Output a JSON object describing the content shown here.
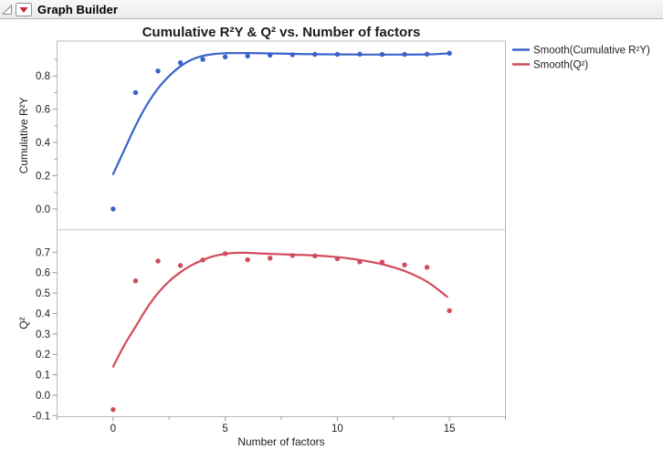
{
  "window": {
    "outline_title": "Graph Builder"
  },
  "chart_data": {
    "type": "scatter",
    "title": "Cumulative R²Y & Q² vs. Number of factors",
    "xlabel": "Number of factors",
    "xlim": [
      -2.5,
      17.5
    ],
    "xticks": [
      [
        0,
        "0"
      ],
      [
        5,
        "5"
      ],
      [
        10,
        "10"
      ],
      [
        15,
        "15"
      ]
    ],
    "xminorticks": [
      -2.5,
      2.5,
      7.5,
      12.5,
      17.5
    ],
    "grid": "off",
    "legend": {
      "position": "right-top",
      "items": [
        {
          "label": "Smooth(Cumulative R²Y)",
          "color": "#3a63c9"
        },
        {
          "label": "Smooth(Q²)",
          "color": "#d14b5c"
        }
      ]
    },
    "panels": [
      {
        "ylabel": "Cumulative R²Y",
        "ylim": [
          -0.125,
          1.01
        ],
        "yticks": [
          [
            0.0,
            "0.0"
          ],
          [
            0.2,
            "0.2"
          ],
          [
            0.4,
            "0.4"
          ],
          [
            0.6,
            "0.6"
          ],
          [
            0.8,
            "0.8"
          ]
        ],
        "yminorticks": [
          0.1,
          0.3,
          0.5,
          0.7,
          0.9
        ],
        "color": "#3a63c9",
        "series_name": "Cumulative R²Y",
        "points_x": [
          0,
          1,
          2,
          3,
          4,
          5,
          6,
          7,
          8,
          9,
          10,
          11,
          12,
          13,
          14,
          15
        ],
        "points_y": [
          0.0,
          0.7,
          0.83,
          0.88,
          0.9,
          0.915,
          0.92,
          0.925,
          0.928,
          0.93,
          0.93,
          0.931,
          0.93,
          0.93,
          0.931,
          0.937
        ],
        "smooth": [
          [
            0,
            0.21
          ],
          [
            0.5,
            0.355
          ],
          [
            1,
            0.5
          ],
          [
            1.5,
            0.625
          ],
          [
            2,
            0.725
          ],
          [
            2.5,
            0.8
          ],
          [
            3,
            0.858
          ],
          [
            3.5,
            0.898
          ],
          [
            4,
            0.921
          ],
          [
            4.5,
            0.932
          ],
          [
            5,
            0.937
          ],
          [
            6,
            0.938
          ],
          [
            7,
            0.936
          ],
          [
            8,
            0.933
          ],
          [
            9,
            0.931
          ],
          [
            10,
            0.93
          ],
          [
            11,
            0.929
          ],
          [
            12,
            0.929
          ],
          [
            13,
            0.929
          ],
          [
            14,
            0.93
          ],
          [
            15,
            0.936
          ]
        ]
      },
      {
        "ylabel": "Q²",
        "ylim": [
          -0.105,
          0.81
        ],
        "yticks": [
          [
            -0.1,
            "-0.1"
          ],
          [
            0.0,
            "0.0"
          ],
          [
            0.1,
            "0.1"
          ],
          [
            0.2,
            "0.2"
          ],
          [
            0.3,
            "0.3"
          ],
          [
            0.4,
            "0.4"
          ],
          [
            0.5,
            "0.5"
          ],
          [
            0.6,
            "0.6"
          ],
          [
            0.7,
            "0.7"
          ]
        ],
        "yminorticks": [],
        "color": "#d14b5c",
        "series_name": "Q²",
        "points_x": [
          0,
          1,
          2,
          3,
          4,
          5,
          6,
          7,
          8,
          9,
          10,
          11,
          12,
          13,
          14,
          15
        ],
        "points_y": [
          -0.07,
          0.56,
          0.657,
          0.635,
          0.662,
          0.693,
          0.663,
          0.671,
          0.684,
          0.682,
          0.668,
          0.653,
          0.652,
          0.638,
          0.626,
          0.414
        ],
        "smooth": [
          [
            0,
            0.14
          ],
          [
            0.5,
            0.245
          ],
          [
            1,
            0.335
          ],
          [
            1.5,
            0.425
          ],
          [
            2,
            0.5
          ],
          [
            2.5,
            0.558
          ],
          [
            3,
            0.602
          ],
          [
            3.5,
            0.636
          ],
          [
            4,
            0.662
          ],
          [
            4.5,
            0.681
          ],
          [
            5,
            0.692
          ],
          [
            5.5,
            0.697
          ],
          [
            6,
            0.697
          ],
          [
            7,
            0.692
          ],
          [
            8,
            0.688
          ],
          [
            9,
            0.684
          ],
          [
            10,
            0.676
          ],
          [
            11,
            0.662
          ],
          [
            12,
            0.641
          ],
          [
            13,
            0.608
          ],
          [
            14,
            0.556
          ],
          [
            14.9,
            0.482
          ]
        ]
      }
    ]
  },
  "style_colors": {
    "plot_border": "#b9b9b9",
    "panel_divider": "#c6c6c6",
    "tick": "#9a9a9a",
    "red_triangle": "#cf2030"
  }
}
